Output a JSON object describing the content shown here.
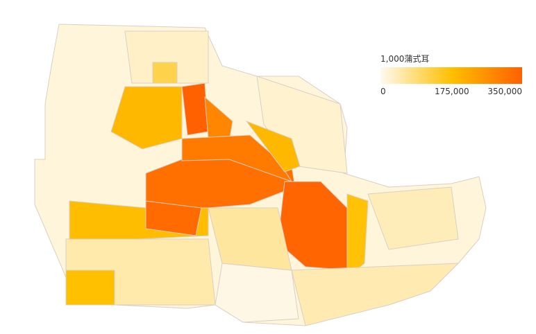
{
  "legend": {
    "title": "1,000蒲式耳",
    "min_label": "0",
    "mid_label": "175,000",
    "max_label": "350,000",
    "range": [
      0,
      350000
    ],
    "colors": [
      "#fffaf0",
      "#ffc000",
      "#ff6000"
    ]
  },
  "map": {
    "border_color": "#d8d0c4",
    "region_values": [
      15000,
      350000,
      280000,
      190000,
      320000,
      340000,
      170000,
      300000,
      180000,
      330000,
      60000,
      50000,
      25000,
      190000,
      30000,
      120000,
      40000,
      175000,
      45000,
      8000
    ]
  }
}
